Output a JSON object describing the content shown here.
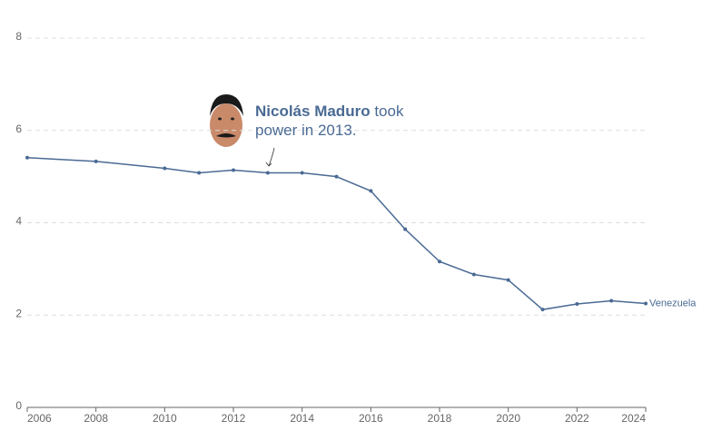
{
  "chart_data": {
    "type": "line",
    "x": [
      2006,
      2008,
      2010,
      2011,
      2012,
      2013,
      2014,
      2015,
      2016,
      2017,
      2018,
      2019,
      2020,
      2021,
      2022,
      2023,
      2024
    ],
    "series": [
      {
        "name": "Venezuela",
        "color": "#4a6a94",
        "values": [
          5.41,
          5.33,
          5.18,
          5.08,
          5.14,
          5.08,
          5.08,
          5.0,
          4.69,
          3.86,
          3.16,
          2.88,
          2.76,
          2.12,
          2.24,
          2.31,
          2.25
        ]
      }
    ],
    "xlim": [
      2006,
      2024
    ],
    "xticks": [
      2006,
      2008,
      2010,
      2012,
      2014,
      2016,
      2018,
      2020,
      2022,
      2024
    ],
    "ylim": [
      0,
      8
    ],
    "yticks": [
      0,
      2,
      4,
      6,
      8
    ],
    "grid": true,
    "annotation": {
      "bold": "Nicolás Maduro",
      "text": "took power in 2013.",
      "x": 2013
    }
  }
}
